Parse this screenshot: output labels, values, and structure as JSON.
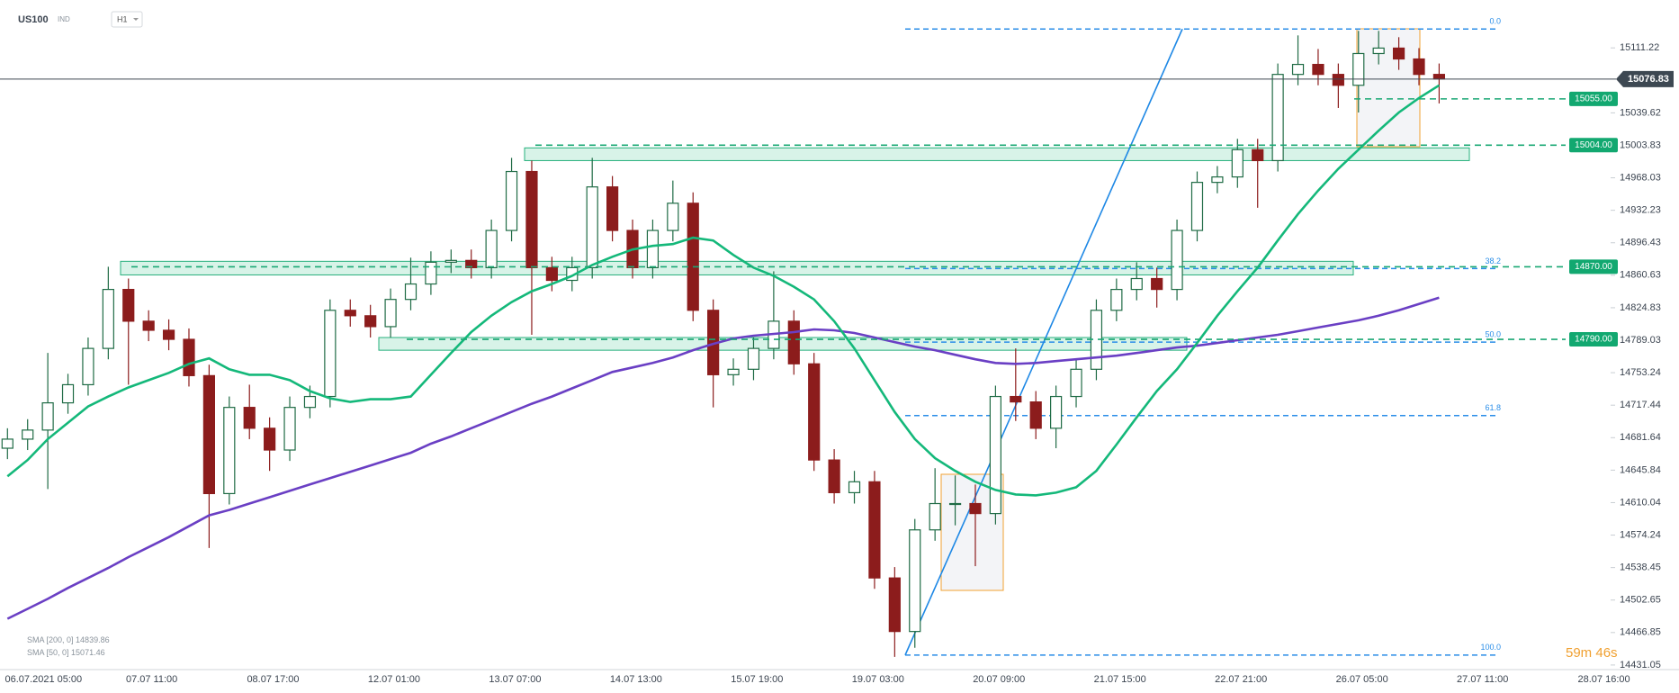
{
  "chart_data": {
    "type": "candlestick",
    "symbol": "US100",
    "instrument_type": "IND",
    "timeframe": "H1",
    "up_color": "#1f6b45",
    "down_color": "#8c1c1c",
    "categories": [
      null,
      null,
      "06.07.2021 05:00",
      null,
      null,
      null,
      null,
      null,
      "07.07 11:00",
      null,
      null,
      null,
      null,
      null,
      "08.07 17:00",
      null,
      null,
      null,
      null,
      null,
      "12.07 01:00",
      null,
      null,
      null,
      null,
      null,
      "13.07 07:00",
      null,
      null,
      null,
      null,
      null,
      "14.07 13:00",
      null,
      null,
      null,
      null,
      null,
      "15.07 19:00",
      null,
      null,
      null,
      null,
      null,
      "19.07 03:00",
      null,
      null,
      null,
      null,
      null,
      "20.07 09:00",
      null,
      null,
      null,
      null,
      null,
      "21.07 15:00",
      null,
      null,
      null,
      null,
      null,
      "22.07 21:00",
      null,
      null,
      null,
      null,
      null,
      "26.07 05:00",
      null,
      null,
      null,
      null,
      null,
      "27.07 11:00",
      null,
      null,
      null,
      null,
      null,
      "28.07 16:00"
    ],
    "open": [
      14670,
      14680,
      14690,
      14720,
      14740,
      14780,
      14845,
      14810,
      14800,
      14790,
      14750,
      14620,
      14715,
      14692,
      14668,
      14715,
      14727,
      14822,
      14816,
      14804,
      14834,
      14851,
      14875,
      14877,
      14869,
      14910,
      14975,
      14869,
      14855,
      14869,
      14958,
      14910,
      14869,
      14910,
      14940,
      14822,
      14751,
      14757,
      14780,
      14810,
      14763,
      14657,
      14621,
      14633,
      14527,
      14468,
      14580,
      14609,
      14609,
      14598,
      14727,
      14721,
      14692,
      14727,
      14757,
      14822,
      14845,
      14857,
      14845,
      14910,
      14963,
      14969,
      14999,
      14987,
      15082,
      15093,
      15082,
      15070,
      15105,
      15111,
      15099,
      15082,
      null,
      null,
      null,
      null,
      null,
      null,
      null,
      null,
      null
    ],
    "high": [
      14692,
      14702,
      14775,
      14752,
      14792,
      14870,
      14857,
      14822,
      14812,
      14802,
      14762,
      14727,
      14740,
      14704,
      14727,
      14739,
      14834,
      14834,
      14828,
      14846,
      14880,
      14887,
      14889,
      14889,
      14922,
      14990,
      14987,
      14881,
      14881,
      14990,
      14970,
      14922,
      14922,
      14965,
      14952,
      14834,
      14769,
      14792,
      14865,
      14822,
      14775,
      14669,
      14645,
      14645,
      14539,
      14592,
      14648,
      14640,
      14630,
      14739,
      14780,
      14733,
      14739,
      14769,
      14834,
      14857,
      14875,
      14869,
      14922,
      14975,
      14981,
      15011,
      15011,
      15094,
      15125,
      15110,
      15094,
      15130,
      15130,
      15123,
      15111,
      15094,
      null,
      null,
      null,
      null,
      null,
      null,
      null,
      null,
      null
    ],
    "low": [
      14658,
      14668,
      14625,
      14708,
      14728,
      14768,
      14740,
      14788,
      14778,
      14738,
      14560,
      14608,
      14680,
      14645,
      14656,
      14703,
      14715,
      14804,
      14792,
      14792,
      14822,
      14839,
      14863,
      14857,
      14857,
      14898,
      14795,
      14843,
      14843,
      14857,
      14898,
      14857,
      14857,
      14898,
      14810,
      14715,
      14739,
      14745,
      14768,
      14751,
      14645,
      14609,
      14609,
      14515,
      14440,
      14450,
      14568,
      14585,
      14540,
      14586,
      14700,
      14680,
      14670,
      14715,
      14745,
      14810,
      14833,
      14825,
      14833,
      14898,
      14951,
      14957,
      14935,
      14975,
      15070,
      15070,
      15045,
      15040,
      15093,
      15087,
      15070,
      15050,
      null,
      null,
      null,
      null,
      null,
      null,
      null,
      null,
      null
    ],
    "close": [
      14680,
      14690,
      14720,
      14740,
      14780,
      14845,
      14810,
      14800,
      14790,
      14750,
      14620,
      14715,
      14692,
      14668,
      14715,
      14727,
      14822,
      14816,
      14804,
      14834,
      14851,
      14875,
      14877,
      14869,
      14910,
      14975,
      14869,
      14855,
      14869,
      14958,
      14910,
      14869,
      14910,
      14940,
      14822,
      14751,
      14757,
      14780,
      14810,
      14763,
      14657,
      14621,
      14633,
      14527,
      14468,
      14580,
      14609,
      14609,
      14598,
      14727,
      14721,
      14692,
      14727,
      14757,
      14822,
      14845,
      14857,
      14845,
      14910,
      14963,
      14969,
      14999,
      14987,
      15082,
      15093,
      15082,
      15070,
      15105,
      15111,
      15099,
      15082,
      15077,
      null,
      null,
      null,
      null,
      null,
      null,
      null,
      null,
      null
    ],
    "series": [
      {
        "name": "SMA [200, 0]",
        "color": "#6a3fc4",
        "last": "14839.86",
        "values": [
          14482,
          14493,
          14504,
          14516,
          14527,
          14538,
          14550,
          14561,
          14572,
          14584,
          14596,
          14602,
          14609,
          14616,
          14623,
          14630,
          14637,
          14644,
          14651,
          14658,
          14665,
          14675,
          14683,
          14692,
          14701,
          14710,
          14719,
          14727,
          14736,
          14745,
          14754,
          14759,
          14764,
          14770,
          14778,
          14785,
          14791,
          14794,
          14796,
          14798,
          14801,
          14800,
          14797,
          14792,
          14787,
          14782,
          14778,
          14773,
          14768,
          14764,
          14763,
          14764,
          14766,
          14768,
          14770,
          14772,
          14775,
          14778,
          14781,
          14783,
          14786,
          14789,
          14792,
          14795,
          14799,
          14803,
          14807,
          14811,
          14816,
          14822,
          14829,
          14836,
          null,
          null,
          null,
          null,
          null,
          null,
          null,
          null,
          null
        ]
      },
      {
        "name": "SMA [50, 0]",
        "color": "#14b87a",
        "last": "15071.46",
        "values": [
          14639,
          14657,
          14680,
          14698,
          14716,
          14727,
          14737,
          14745,
          14753,
          14763,
          14769,
          14757,
          14751,
          14751,
          14745,
          14733,
          14725,
          14721,
          14724,
          14724,
          14727,
          14751,
          14775,
          14798,
          14816,
          14831,
          14843,
          14851,
          14860,
          14872,
          14881,
          14889,
          14893,
          14895,
          14902,
          14899,
          14883,
          14869,
          14860,
          14848,
          14834,
          14810,
          14780,
          14745,
          14710,
          14680,
          14659,
          14645,
          14633,
          14624,
          14619,
          14618,
          14621,
          14627,
          14645,
          14674,
          14704,
          14733,
          14757,
          14786,
          14816,
          14843,
          14869,
          14899,
          14928,
          14954,
          14978,
          14999,
          15020,
          15040,
          15056,
          15070,
          null,
          null,
          null,
          null,
          null,
          null,
          null,
          null,
          null
        ]
      }
    ],
    "ylim": [
      14426,
      15164
    ],
    "yticks": [
      15111.22,
      15039.62,
      15003.83,
      14968.03,
      14932.23,
      14896.43,
      14860.63,
      14824.83,
      14789.03,
      14753.24,
      14717.44,
      14681.64,
      14645.84,
      14610.04,
      14574.24,
      14538.45,
      14502.65,
      14466.85,
      14431.05
    ],
    "last_price": 15076.83,
    "levels": [
      {
        "value": 15055,
        "label": "15055.00"
      },
      {
        "value": 15004,
        "label": "15004.00"
      },
      {
        "value": 14870,
        "label": "14870.00"
      },
      {
        "value": 14790,
        "label": "14790.00"
      }
    ],
    "zones": [
      {
        "top": 15001,
        "bottom": 14987
      },
      {
        "top": 14876,
        "bottom": 14861
      },
      {
        "top": 14792,
        "bottom": 14778
      }
    ],
    "fib": [
      {
        "label": "0.0",
        "value": 15132
      },
      {
        "label": "38.2",
        "value": 14868
      },
      {
        "label": "50.0",
        "value": 14787
      },
      {
        "label": "61.8",
        "value": 14706
      },
      {
        "label": "100.0",
        "value": 14442
      }
    ],
    "countdown": "59m 46s"
  }
}
